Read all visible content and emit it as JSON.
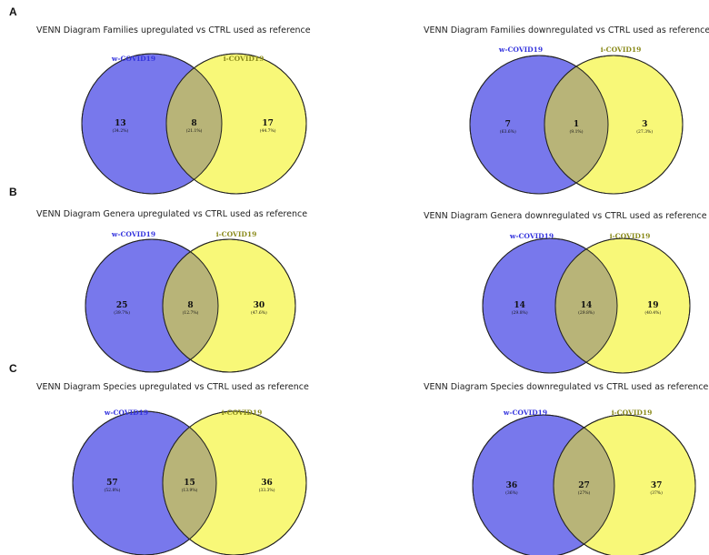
{
  "colors": {
    "left_fill": "#7878ec",
    "right_fill": "#f8f878",
    "overlap_fill": "#b8b478",
    "left_label": "#3333dd",
    "right_label": "#8a8a1a"
  },
  "panels": {
    "A": "A",
    "B": "B",
    "C": "C"
  },
  "diagrams": [
    {
      "title": "VENN Diagram Families upregulated vs CTRL used as reference",
      "set_left": "w-COVID19",
      "set_right": "i-COVID19",
      "left": {
        "count": "13",
        "pct": "(34.2%)"
      },
      "overlap": {
        "count": "8",
        "pct": "(21.1%)"
      },
      "right": {
        "count": "17",
        "pct": "(44.7%)"
      }
    },
    {
      "title": "VENN Diagram Families downregulated vs CTRL used as reference",
      "set_left": "w-COVID19",
      "set_right": "i-COVID19",
      "left": {
        "count": "7",
        "pct": "(63.6%)"
      },
      "overlap": {
        "count": "1",
        "pct": "(9.1%)"
      },
      "right": {
        "count": "3",
        "pct": "(27.3%)"
      }
    },
    {
      "title": "VENN Diagram Genera upregulated vs CTRL used as reference",
      "set_left": "w-COVID19",
      "set_right": "i-COVID19",
      "left": {
        "count": "25",
        "pct": "(39.7%)"
      },
      "overlap": {
        "count": "8",
        "pct": "(12.7%)"
      },
      "right": {
        "count": "30",
        "pct": "(47.6%)"
      }
    },
    {
      "title": "VENN Diagram Genera downregulated vs CTRL used as reference",
      "set_left": "w-COVID19",
      "set_right": "i-COVID19",
      "left": {
        "count": "14",
        "pct": "(29.8%)"
      },
      "overlap": {
        "count": "14",
        "pct": "(29.8%)"
      },
      "right": {
        "count": "19",
        "pct": "(40.4%)"
      }
    },
    {
      "title": "VENN Diagram Species upregulated vs CTRL used as reference",
      "set_left": "w-COVID19",
      "set_right": "i-COVID19",
      "left": {
        "count": "57",
        "pct": "(52.8%)"
      },
      "overlap": {
        "count": "15",
        "pct": "(13.9%)"
      },
      "right": {
        "count": "36",
        "pct": "(33.3%)"
      }
    },
    {
      "title": "VENN Diagram Species downregulated vs CTRL used as reference",
      "set_left": "w-COVID19",
      "set_right": "i-COVID19",
      "left": {
        "count": "36",
        "pct": "(36%)"
      },
      "overlap": {
        "count": "27",
        "pct": "(27%)"
      },
      "right": {
        "count": "37",
        "pct": "(37%)"
      }
    }
  ]
}
